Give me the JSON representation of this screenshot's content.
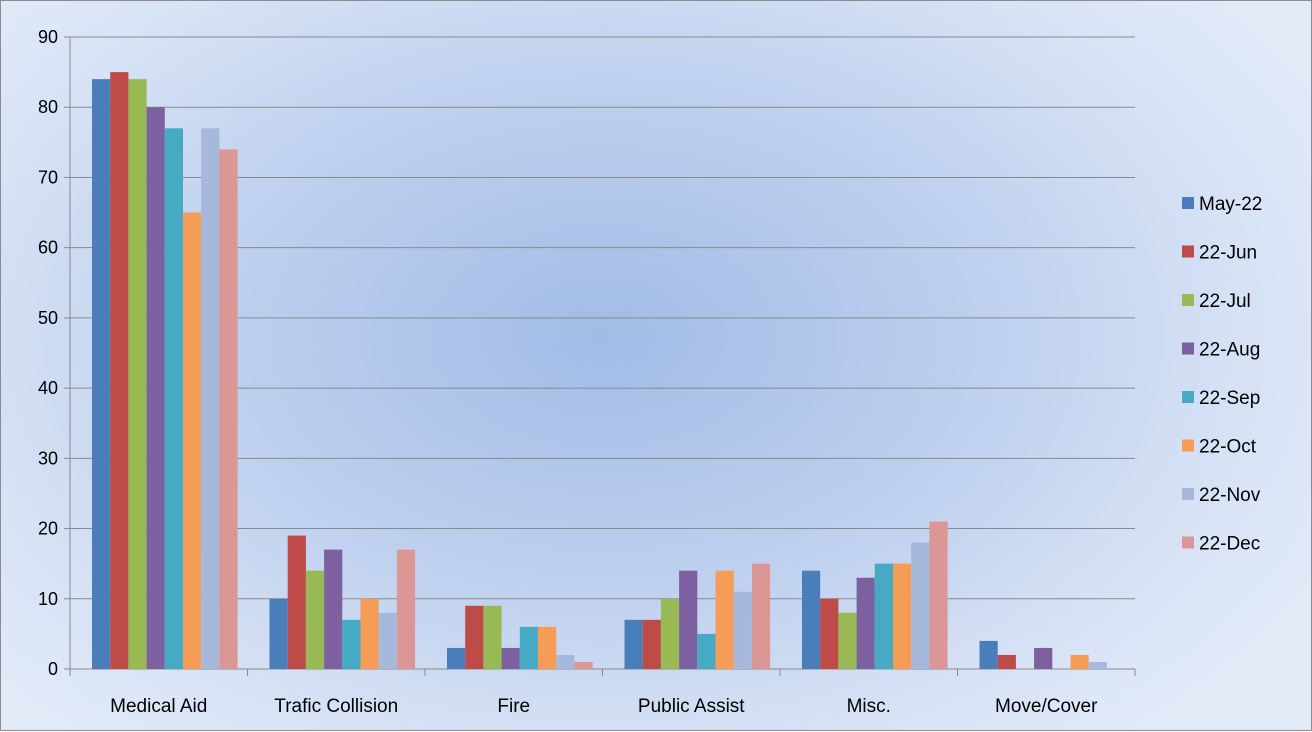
{
  "chart_data": {
    "type": "bar",
    "title": "",
    "xlabel": "",
    "ylabel": "",
    "ylim": [
      0,
      90
    ],
    "yticks": [
      0,
      10,
      20,
      30,
      40,
      50,
      60,
      70,
      80,
      90
    ],
    "grid": true,
    "legend_position": "right",
    "categories": [
      "Medical Aid",
      "Trafic Collision",
      "Fire",
      "Public Assist",
      "Misc.",
      "Move/Cover"
    ],
    "series": [
      {
        "name": "May-22",
        "color": "#4a7ebb",
        "values": [
          84,
          10,
          3,
          7,
          14,
          4
        ]
      },
      {
        "name": "22-Jun",
        "color": "#be4b48",
        "values": [
          85,
          19,
          9,
          7,
          10,
          2
        ]
      },
      {
        "name": "22-Jul",
        "color": "#98b954",
        "values": [
          84,
          14,
          9,
          10,
          8,
          0
        ]
      },
      {
        "name": "22-Aug",
        "color": "#7d60a0",
        "values": [
          80,
          17,
          3,
          14,
          13,
          3
        ]
      },
      {
        "name": "22-Sep",
        "color": "#46aac5",
        "values": [
          77,
          7,
          6,
          5,
          15,
          0
        ]
      },
      {
        "name": "22-Oct",
        "color": "#f59d56",
        "values": [
          65,
          10,
          6,
          14,
          15,
          2
        ]
      },
      {
        "name": "22-Nov",
        "color": "#a6b9dc",
        "values": [
          77,
          8,
          2,
          11,
          18,
          1
        ]
      },
      {
        "name": "22-Dec",
        "color": "#db9795",
        "values": [
          74,
          17,
          1,
          15,
          21,
          0
        ]
      }
    ]
  }
}
